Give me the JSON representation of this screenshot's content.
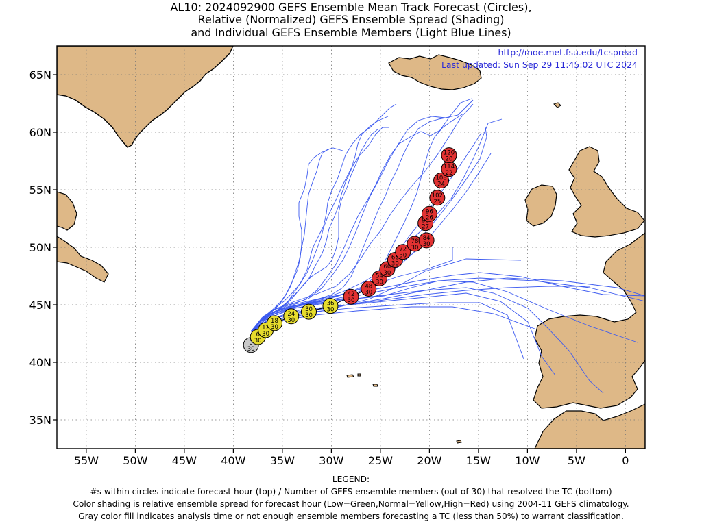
{
  "header": {
    "title_line1": "AL10: 2024092900 GEFS Ensemble Mean Track Forecast (Circles),",
    "title_line2": "Relative (Normalized) GEFS Ensemble Spread (Shading)",
    "title_line3": "and Individual GEFS Ensemble Members (Light Blue Lines)"
  },
  "credits": {
    "url": "http://moe.met.fsu.edu/tcspread",
    "updated": "Last updated: Sun Sep 29 11:45:02 UTC 2024"
  },
  "legend": {
    "heading": "LEGEND:",
    "line1": "#s within circles indicate forecast hour (top) / Number of GEFS ensemble members (out of 30) that resolved the TC (bottom)",
    "line2": "Color shading is relative ensemble spread for forecast hour (Low=Green,Normal=Yellow,High=Red) using 2004-11 GEFS climatology.",
    "line3": "Gray color fill indicates analysis time or not enough ensemble members forecasting a TC (less than 50%) to warrant classification."
  },
  "colors": {
    "land": "#deb887",
    "member_line": "#3c5af0",
    "gray": "#c8c8c8",
    "yellow": "#e6dc2d",
    "red": "#e23232",
    "credit_text": "#2a2ad8"
  },
  "map": {
    "lon_range": [
      -58,
      2
    ],
    "lat_range": [
      32.5,
      67.5
    ],
    "lon_ticks": [
      -55,
      -50,
      -45,
      -40,
      -35,
      -30,
      -25,
      -20,
      -15,
      -10,
      -5,
      0
    ],
    "lon_tick_labels": [
      "55W",
      "50W",
      "45W",
      "40W",
      "35W",
      "30W",
      "25W",
      "20W",
      "15W",
      "10W",
      "5W",
      "0"
    ],
    "lat_ticks": [
      35,
      40,
      45,
      50,
      55,
      60,
      65
    ],
    "lat_tick_labels": [
      "35N",
      "40N",
      "45N",
      "50N",
      "55N",
      "60N",
      "65N"
    ],
    "grid": "dotted"
  },
  "track": [
    {
      "hour": "0",
      "members": "30",
      "lon": -38.2,
      "lat": 41.5,
      "shade": "gray"
    },
    {
      "hour": "6",
      "members": "30",
      "lon": -37.5,
      "lat": 42.2,
      "shade": "yellow"
    },
    {
      "hour": "12",
      "members": "30",
      "lon": -36.7,
      "lat": 42.8,
      "shade": "yellow"
    },
    {
      "hour": "18",
      "members": "30",
      "lon": -35.8,
      "lat": 43.4,
      "shade": "yellow"
    },
    {
      "hour": "24",
      "members": "30",
      "lon": -34.1,
      "lat": 44.0,
      "shade": "yellow"
    },
    {
      "hour": "30",
      "members": "30",
      "lon": -32.3,
      "lat": 44.4,
      "shade": "yellow"
    },
    {
      "hour": "36",
      "members": "30",
      "lon": -30.1,
      "lat": 44.9,
      "shade": "yellow"
    },
    {
      "hour": "42",
      "members": "30",
      "lon": -28.0,
      "lat": 45.7,
      "shade": "red"
    },
    {
      "hour": "48",
      "members": "30",
      "lon": -26.2,
      "lat": 46.4,
      "shade": "red"
    },
    {
      "hour": "54",
      "members": "30",
      "lon": -25.1,
      "lat": 47.3,
      "shade": "red"
    },
    {
      "hour": "60",
      "members": "30",
      "lon": -24.3,
      "lat": 48.1,
      "shade": "red"
    },
    {
      "hour": "66",
      "members": "30",
      "lon": -23.5,
      "lat": 48.9,
      "shade": "red"
    },
    {
      "hour": "72",
      "members": "30",
      "lon": -22.7,
      "lat": 49.6,
      "shade": "red"
    },
    {
      "hour": "78",
      "members": "30",
      "lon": -21.5,
      "lat": 50.3,
      "shade": "red"
    },
    {
      "hour": "84",
      "members": "30",
      "lon": -20.3,
      "lat": 50.6,
      "shade": "red"
    },
    {
      "hour": "90",
      "members": "27",
      "lon": -20.4,
      "lat": 52.1,
      "shade": "red"
    },
    {
      "hour": "96",
      "members": "26",
      "lon": -20.0,
      "lat": 52.9,
      "shade": "red"
    },
    {
      "hour": "102",
      "members": "25",
      "lon": -19.2,
      "lat": 54.3,
      "shade": "red"
    },
    {
      "hour": "108",
      "members": "24",
      "lon": -18.8,
      "lat": 55.8,
      "shade": "red"
    },
    {
      "hour": "114",
      "members": "22",
      "lon": -18.0,
      "lat": 56.8,
      "shade": "red"
    },
    {
      "hour": "120",
      "members": "20",
      "lon": -18.0,
      "lat": 58.0,
      "shade": "red"
    }
  ]
}
